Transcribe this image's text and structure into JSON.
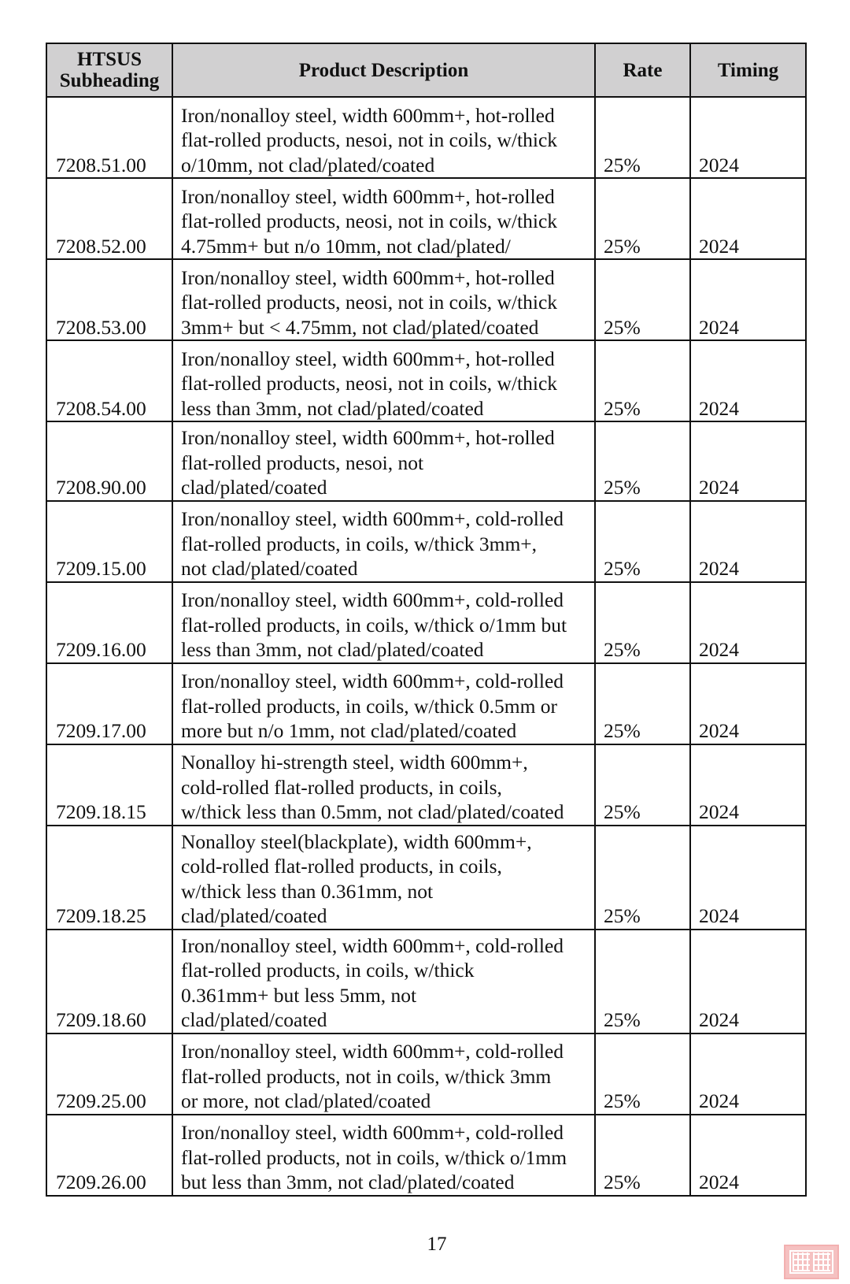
{
  "table": {
    "headers": {
      "subheading_line1": "HTSUS",
      "subheading_line2": "Subheading",
      "description": "Product Description",
      "rate": "Rate",
      "timing": "Timing"
    },
    "rows": [
      {
        "code": "7208.51.00",
        "lines": [
          "Iron/nonalloy steel, width 600mm+, hot-rolled",
          "flat-rolled products, nesoi, not in coils, w/thick",
          "o/10mm, not clad/plated/coated"
        ],
        "rate": "25%",
        "timing": "2024"
      },
      {
        "code": "7208.52.00",
        "lines": [
          "Iron/nonalloy steel, width 600mm+, hot-rolled",
          "flat-rolled products, neosi, not in coils, w/thick",
          "4.75mm+ but n/o 10mm, not clad/plated/"
        ],
        "rate": "25%",
        "timing": "2024"
      },
      {
        "code": "7208.53.00",
        "lines": [
          "Iron/nonalloy steel, width 600mm+, hot-rolled",
          "flat-rolled products, neosi, not in coils, w/thick",
          "3mm+ but < 4.75mm, not clad/plated/coated"
        ],
        "rate": "25%",
        "timing": "2024"
      },
      {
        "code": "7208.54.00",
        "lines": [
          "Iron/nonalloy steel, width 600mm+, hot-rolled",
          "flat-rolled products, neosi, not in coils, w/thick",
          "less than 3mm, not clad/plated/coated"
        ],
        "rate": "25%",
        "timing": "2024"
      },
      {
        "code": "7208.90.00",
        "lines": [
          "Iron/nonalloy steel, width 600mm+, hot-rolled",
          "flat-rolled products, nesoi, not",
          "clad/plated/coated"
        ],
        "rate": "25%",
        "timing": "2024"
      },
      {
        "code": "7209.15.00",
        "lines": [
          "Iron/nonalloy steel, width 600mm+, cold-rolled",
          "flat-rolled products, in coils, w/thick 3mm+,",
          "not clad/plated/coated"
        ],
        "rate": "25%",
        "timing": "2024"
      },
      {
        "code": "7209.16.00",
        "lines": [
          "Iron/nonalloy steel, width 600mm+, cold-rolled",
          "flat-rolled products, in coils, w/thick o/1mm but",
          "less than 3mm, not clad/plated/coated"
        ],
        "rate": "25%",
        "timing": "2024"
      },
      {
        "code": "7209.17.00",
        "lines": [
          "Iron/nonalloy steel, width 600mm+, cold-rolled",
          "flat-rolled products, in coils, w/thick 0.5mm or",
          "more but n/o 1mm, not clad/plated/coated"
        ],
        "rate": "25%",
        "timing": "2024"
      },
      {
        "code": "7209.18.15",
        "lines": [
          "Nonalloy hi-strength steel, width 600mm+,",
          "cold-rolled flat-rolled products, in coils,",
          "w/thick less than 0.5mm, not clad/plated/coated"
        ],
        "rate": "25%",
        "timing": "2024"
      },
      {
        "code": "7209.18.25",
        "lines": [
          "Nonalloy steel(blackplate), width 600mm+,",
          "cold-rolled flat-rolled products, in coils,",
          "w/thick less than 0.361mm, not",
          "clad/plated/coated"
        ],
        "rate": "25%",
        "timing": "2024"
      },
      {
        "code": "7209.18.60",
        "lines": [
          "Iron/nonalloy steel, width 600mm+, cold-rolled",
          "flat-rolled products, in coils, w/thick",
          "0.361mm+ but less 5mm, not",
          "clad/plated/coated"
        ],
        "rate": "25%",
        "timing": "2024"
      },
      {
        "code": "7209.25.00",
        "lines": [
          "Iron/nonalloy steel, width 600mm+, cold-rolled",
          "flat-rolled products, not in coils, w/thick 3mm",
          "or more, not clad/plated/coated"
        ],
        "rate": "25%",
        "timing": "2024"
      },
      {
        "code": "7209.26.00",
        "lines": [
          "Iron/nonalloy steel, width 600mm+, cold-rolled",
          "flat-rolled products, not in coils, w/thick o/1mm",
          "but less than 3mm, not clad/plated/coated"
        ],
        "rate": "25%",
        "timing": "2024"
      }
    ]
  },
  "page_number": "17",
  "seal": {
    "color": "#f5c1c1"
  }
}
